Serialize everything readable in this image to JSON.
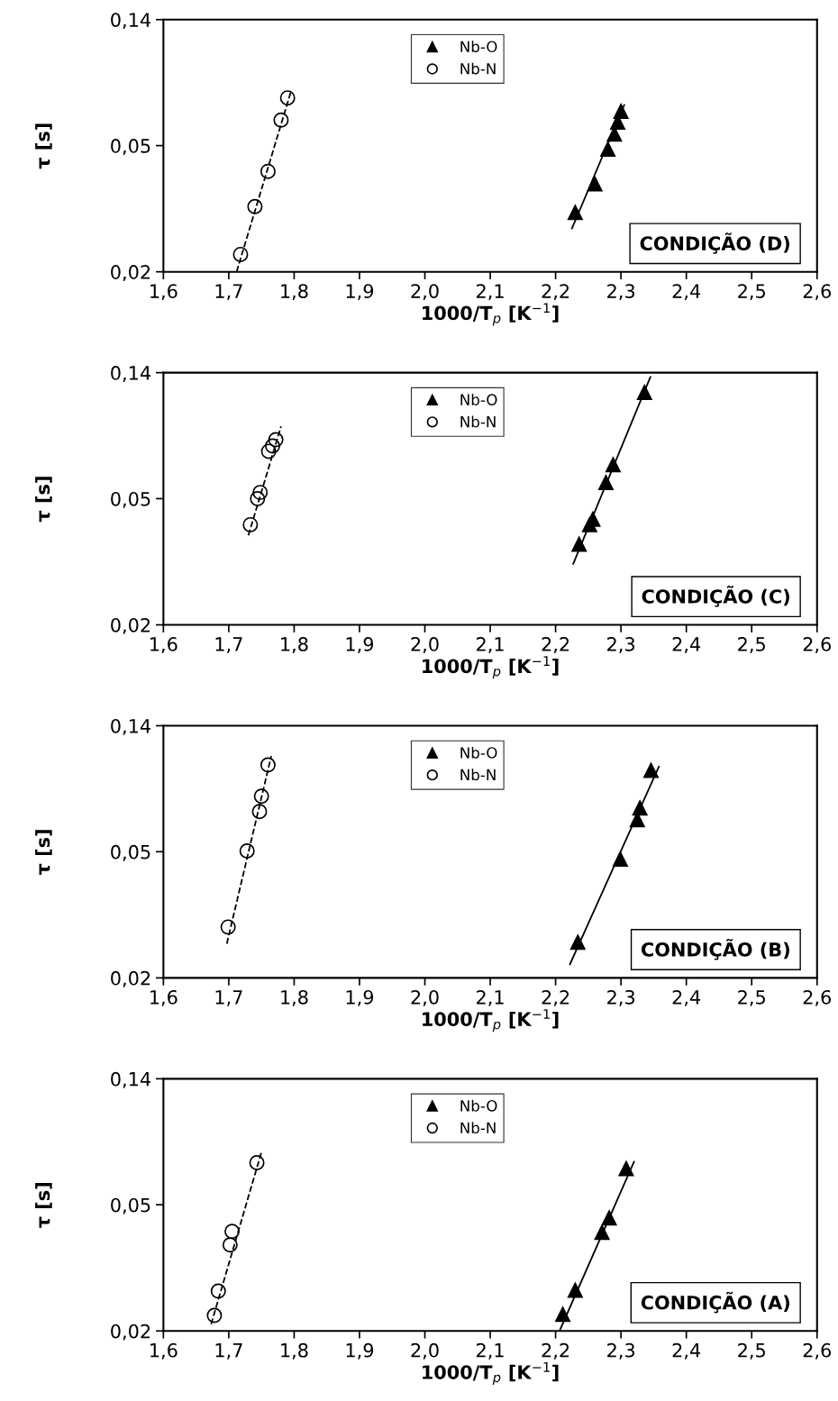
{
  "chart_data": [
    {
      "type": "scatter",
      "xlabel": "1000/T$_{p}$ [K$^{−1}$]",
      "ylabel": "τ [s]",
      "log": "y",
      "grid": false,
      "legend": "top",
      "annotations": [
        "CONDIÇÃO (D)"
      ],
      "xlim": [
        1.6,
        2.6
      ],
      "xticks": [
        {
          "value": 1.6,
          "label": "1,6"
        },
        {
          "value": 1.7,
          "label": "1,7"
        },
        {
          "value": 1.8,
          "label": "1,8"
        },
        {
          "value": 1.9,
          "label": "1,9"
        },
        {
          "value": 2.0,
          "label": "2,0"
        },
        {
          "value": 2.1,
          "label": "2,1"
        },
        {
          "value": 2.2,
          "label": "2,2"
        },
        {
          "value": 2.3,
          "label": "2,3"
        },
        {
          "value": 2.4,
          "label": "2,4"
        },
        {
          "value": 2.5,
          "label": "2,5"
        },
        {
          "value": 2.6,
          "label": "2,6"
        }
      ],
      "ylim": [
        0.0183,
        0.1353
      ],
      "yticks": [
        {
          "value": 0.0183,
          "label": "0,02"
        },
        {
          "value": 0.0498,
          "label": "0,05"
        },
        {
          "value": 0.1353,
          "label": "0,14"
        }
      ],
      "series": [
        {
          "name": "Nb-O",
          "type": "scatter",
          "marker": "triangle",
          "color": "#000000",
          "x": [
            2.23,
            2.26,
            2.28,
            2.29,
            2.295,
            2.3
          ],
          "values": [
            0.0293,
            0.0368,
            0.0484,
            0.0546,
            0.06,
            0.0654
          ]
        },
        {
          "name": "Nb-N",
          "type": "scatter",
          "marker": "circle",
          "color": "#000000",
          "x": [
            1.718,
            1.74,
            1.76,
            1.78,
            1.79
          ],
          "values": [
            0.021,
            0.0307,
            0.0406,
            0.061,
            0.0727
          ]
        },
        {
          "type": "line",
          "marker": "none",
          "line_style": "solid",
          "color": "#000000",
          "x": [
            2.225,
            2.305
          ],
          "values": [
            0.0258,
            0.0687
          ]
        },
        {
          "type": "line",
          "marker": "none",
          "line_style": "dashed",
          "color": "#000000",
          "x": [
            1.712,
            1.795
          ],
          "values": [
            0.0183,
            0.0763
          ]
        }
      ]
    },
    {
      "type": "scatter",
      "xlabel": "1000/T$_{p}$ [K$^{−1}$]",
      "ylabel": "τ [s]",
      "log": "y",
      "grid": false,
      "legend": "top",
      "annotations": [
        "CONDIÇÃO (C)"
      ],
      "xlim": [
        1.6,
        2.6
      ],
      "xticks": [
        {
          "value": 1.6,
          "label": "1,6"
        },
        {
          "value": 1.7,
          "label": "1,7"
        },
        {
          "value": 1.8,
          "label": "1,8"
        },
        {
          "value": 1.9,
          "label": "1,9"
        },
        {
          "value": 2.0,
          "label": "2,0"
        },
        {
          "value": 2.1,
          "label": "2,1"
        },
        {
          "value": 2.2,
          "label": "2,2"
        },
        {
          "value": 2.3,
          "label": "2,3"
        },
        {
          "value": 2.4,
          "label": "2,4"
        },
        {
          "value": 2.5,
          "label": "2,5"
        },
        {
          "value": 2.6,
          "label": "2,6"
        }
      ],
      "ylim": [
        0.0183,
        0.1353
      ],
      "yticks": [
        {
          "value": 0.0183,
          "label": "0,02"
        },
        {
          "value": 0.0498,
          "label": "0,05"
        },
        {
          "value": 0.1353,
          "label": "0,14"
        }
      ],
      "series": [
        {
          "name": "Nb-O",
          "type": "scatter",
          "marker": "triangle",
          "color": "#000000",
          "x": [
            2.236,
            2.252,
            2.257,
            2.277,
            2.288,
            2.336
          ],
          "values": [
            0.0347,
            0.0405,
            0.0423,
            0.0566,
            0.0652,
            0.1158
          ]
        },
        {
          "name": "Nb-N",
          "type": "scatter",
          "marker": "circle",
          "color": "#000000",
          "x": [
            1.733,
            1.744,
            1.748,
            1.761,
            1.767,
            1.772
          ],
          "values": [
            0.0405,
            0.0498,
            0.0523,
            0.0725,
            0.0756,
            0.0795
          ]
        },
        {
          "type": "line",
          "marker": "none",
          "line_style": "solid",
          "color": "#000000",
          "x": [
            2.227,
            2.345
          ],
          "values": [
            0.0297,
            0.1307
          ]
        },
        {
          "type": "line",
          "marker": "none",
          "line_style": "dashed",
          "color": "#000000",
          "x": [
            1.73,
            1.78
          ],
          "values": [
            0.0372,
            0.0884
          ]
        }
      ]
    },
    {
      "type": "scatter",
      "xlabel": "1000/T$_{p}$ [K$^{−1}$]",
      "ylabel": "τ [s]",
      "log": "y",
      "grid": false,
      "legend": "top",
      "annotations": [
        "CONDIÇÃO (B)"
      ],
      "xlim": [
        1.6,
        2.6
      ],
      "xticks": [
        {
          "value": 1.6,
          "label": "1,6"
        },
        {
          "value": 1.7,
          "label": "1,7"
        },
        {
          "value": 1.8,
          "label": "1,8"
        },
        {
          "value": 1.9,
          "label": "1,9"
        },
        {
          "value": 2.0,
          "label": "2,0"
        },
        {
          "value": 2.1,
          "label": "2,1"
        },
        {
          "value": 2.2,
          "label": "2,2"
        },
        {
          "value": 2.3,
          "label": "2,3"
        },
        {
          "value": 2.4,
          "label": "2,4"
        },
        {
          "value": 2.5,
          "label": "2,5"
        },
        {
          "value": 2.6,
          "label": "2,6"
        }
      ],
      "ylim": [
        0.0183,
        0.1353
      ],
      "yticks": [
        {
          "value": 0.0183,
          "label": "0,02"
        },
        {
          "value": 0.0498,
          "label": "0,05"
        },
        {
          "value": 0.1353,
          "label": "0,14"
        }
      ],
      "series": [
        {
          "name": "Nb-O",
          "type": "scatter",
          "marker": "triangle",
          "color": "#000000",
          "x": [
            2.234,
            2.299,
            2.325,
            2.329,
            2.346
          ],
          "values": [
            0.0243,
            0.047,
            0.0642,
            0.0705,
            0.0949
          ]
        },
        {
          "name": "Nb-N",
          "type": "scatter",
          "marker": "circle",
          "color": "#000000",
          "x": [
            1.699,
            1.728,
            1.747,
            1.75,
            1.76
          ],
          "values": [
            0.0274,
            0.0501,
            0.0685,
            0.0773,
            0.0991
          ]
        },
        {
          "type": "line",
          "marker": "none",
          "line_style": "solid",
          "color": "#000000",
          "x": [
            2.222,
            2.358
          ],
          "values": [
            0.0204,
            0.0977
          ]
        },
        {
          "type": "line",
          "marker": "none",
          "line_style": "dashed",
          "color": "#000000",
          "x": [
            1.697,
            1.765
          ],
          "values": [
            0.024,
            0.1064
          ]
        }
      ]
    },
    {
      "type": "scatter",
      "xlabel": "1000/T$_{p}$ [K$^{−1}$]",
      "ylabel": "τ [s]",
      "log": "y",
      "grid": false,
      "legend": "top",
      "annotations": [
        "CONDIÇÃO (A)"
      ],
      "xlim": [
        1.6,
        2.6
      ],
      "xticks": [
        {
          "value": 1.6,
          "label": "1,6"
        },
        {
          "value": 1.7,
          "label": "1,7"
        },
        {
          "value": 1.8,
          "label": "1,8"
        },
        {
          "value": 1.9,
          "label": "1,9"
        },
        {
          "value": 2.0,
          "label": "2,0"
        },
        {
          "value": 2.1,
          "label": "2,1"
        },
        {
          "value": 2.2,
          "label": "2,2"
        },
        {
          "value": 2.3,
          "label": "2,3"
        },
        {
          "value": 2.4,
          "label": "2,4"
        },
        {
          "value": 2.5,
          "label": "2,5"
        },
        {
          "value": 2.6,
          "label": "2,6"
        }
      ],
      "ylim": [
        0.0183,
        0.1353
      ],
      "yticks": [
        {
          "value": 0.0183,
          "label": "0,02"
        },
        {
          "value": 0.0498,
          "label": "0,05"
        },
        {
          "value": 0.1353,
          "label": "0,14"
        }
      ],
      "series": [
        {
          "name": "Nb-O",
          "type": "scatter",
          "marker": "triangle",
          "color": "#000000",
          "x": [
            2.211,
            2.23,
            2.271,
            2.282,
            2.308
          ],
          "values": [
            0.0209,
            0.0253,
            0.04,
            0.0449,
            0.0664
          ]
        },
        {
          "name": "Nb-N",
          "type": "scatter",
          "marker": "circle",
          "color": "#000000",
          "x": [
            1.678,
            1.684,
            1.702,
            1.705,
            1.743
          ],
          "values": [
            0.0207,
            0.0251,
            0.0362,
            0.0403,
            0.0695
          ]
        },
        {
          "type": "line",
          "marker": "none",
          "line_style": "solid",
          "color": "#000000",
          "x": [
            2.207,
            2.32
          ],
          "values": [
            0.0185,
            0.07
          ]
        },
        {
          "type": "line",
          "marker": "none",
          "line_style": "dashed",
          "color": "#000000",
          "x": [
            1.673,
            1.75
          ],
          "values": [
            0.0193,
            0.0756
          ]
        }
      ]
    }
  ]
}
